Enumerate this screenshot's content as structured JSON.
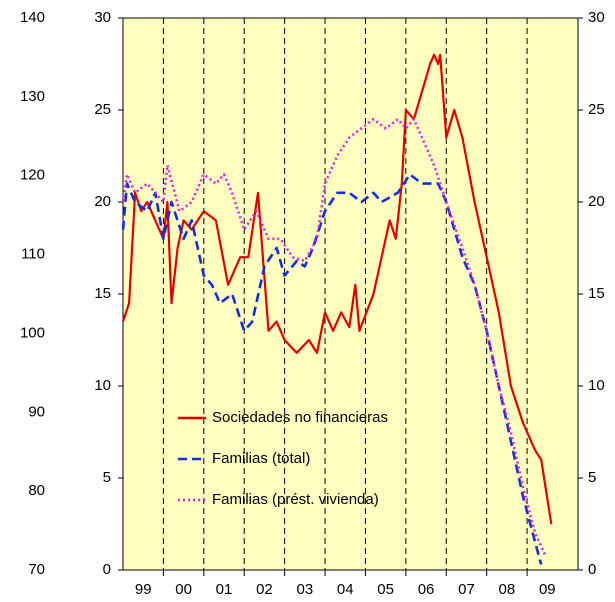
{
  "chart_data": {
    "type": "line",
    "xlim": [
      1999,
      2010.26
    ],
    "xticks": [
      {
        "value": 1999.5,
        "label": "99"
      },
      {
        "value": 2000.5,
        "label": "00"
      },
      {
        "value": 2001.5,
        "label": "01"
      },
      {
        "value": 2002.5,
        "label": "02"
      },
      {
        "value": 2003.5,
        "label": "03"
      },
      {
        "value": 2004.5,
        "label": "04"
      },
      {
        "value": 2005.5,
        "label": "05"
      },
      {
        "value": 2006.5,
        "label": "06"
      },
      {
        "value": 2007.5,
        "label": "07"
      },
      {
        "value": 2008.5,
        "label": "08"
      },
      {
        "value": 2009.5,
        "label": "09"
      }
    ],
    "year_lines": [
      2000,
      2001,
      2002,
      2003,
      2004,
      2005,
      2006,
      2007,
      2008,
      2009
    ],
    "ylim": [
      0,
      30
    ],
    "yticks": [
      0,
      5,
      10,
      15,
      20,
      25,
      30
    ],
    "y2lim": [
      0,
      30
    ],
    "y2ticks": [
      0,
      5,
      10,
      15,
      20,
      25,
      30
    ],
    "y3lim": [
      70,
      140
    ],
    "y3ticks": [
      70,
      80,
      90,
      100,
      110,
      120,
      130,
      140
    ],
    "background": "#ffffc0",
    "legend": "lower-left",
    "series": [
      {
        "name": "Sociedades no financieras",
        "color": "#e00000",
        "style": "solid",
        "x": [
          1999.0,
          1999.15,
          1999.3,
          1999.45,
          1999.6,
          1999.8,
          2000.0,
          2000.1,
          2000.2,
          2000.35,
          2000.5,
          2000.7,
          2001.0,
          2001.3,
          2001.6,
          2001.9,
          2002.1,
          2002.34,
          2002.6,
          2002.8,
          2003.0,
          2003.3,
          2003.6,
          2003.8,
          2004.0,
          2004.2,
          2004.4,
          2004.6,
          2004.75,
          2004.85,
          2005.2,
          2005.4,
          2005.6,
          2005.75,
          2005.9,
          2006.0,
          2006.2,
          2006.4,
          2006.6,
          2006.7,
          2006.8,
          2006.85,
          2007.0,
          2007.2,
          2007.4,
          2007.7,
          2008.0,
          2008.3,
          2008.6,
          2008.9,
          2009.2,
          2009.35,
          2009.6
        ],
        "values": [
          13.5,
          14.5,
          20.5,
          19.5,
          20,
          19,
          18,
          20,
          14.5,
          17.5,
          19,
          18.5,
          19.5,
          19,
          15.5,
          17,
          17,
          20.5,
          13,
          13.5,
          12.5,
          11.8,
          12.5,
          11.8,
          14,
          13,
          14,
          13.2,
          15.5,
          13,
          15,
          17,
          19,
          18,
          21,
          25,
          24.5,
          26,
          27.5,
          28,
          27.5,
          28,
          23.5,
          25,
          23.5,
          20,
          17,
          14,
          10,
          8,
          6.5,
          6,
          2.5
        ]
      },
      {
        "name": "Familias (total)",
        "color": "#1030e0",
        "style": "dashed",
        "x": [
          1999.0,
          1999.1,
          1999.3,
          1999.6,
          1999.8,
          2000.0,
          2000.2,
          2000.5,
          2000.7,
          2001.0,
          2001.2,
          2001.4,
          2001.7,
          2002.0,
          2002.2,
          2002.5,
          2002.8,
          2003.0,
          2003.3,
          2003.5,
          2003.7,
          2004.0,
          2004.3,
          2004.6,
          2004.9,
          2005.2,
          2005.4,
          2005.8,
          2006.1,
          2006.4,
          2006.8,
          2007.0,
          2007.4,
          2007.7,
          2008.0,
          2008.3,
          2008.6,
          2008.9,
          2009.2,
          2009.35
        ],
        "values": [
          18.5,
          21,
          20,
          19.5,
          20.5,
          18,
          20,
          18,
          19,
          16,
          15.5,
          14.5,
          15,
          13,
          13.5,
          16.5,
          17.5,
          16,
          16.8,
          16.5,
          17.5,
          19.5,
          20.5,
          20.5,
          20,
          20.5,
          20,
          20.5,
          21.5,
          21,
          21,
          20,
          17,
          15.5,
          13,
          10,
          7,
          4,
          1.5,
          0.3
        ]
      },
      {
        "name": "Familias (prést. vivienda)",
        "color": "#e020e0",
        "style": "dotted",
        "x": [
          1999.0,
          1999.1,
          1999.3,
          1999.6,
          1999.8,
          2000.0,
          2000.1,
          2000.4,
          2000.7,
          2001.0,
          2001.3,
          2001.5,
          2001.7,
          2002.0,
          2002.3,
          2002.6,
          2002.9,
          2003.2,
          2003.5,
          2003.8,
          2004.0,
          2004.3,
          2004.6,
          2004.9,
          2005.2,
          2005.5,
          2005.8,
          2006.0,
          2006.2,
          2006.5,
          2006.7,
          2007.0,
          2007.4,
          2007.7,
          2008.0,
          2008.3,
          2008.6,
          2008.9,
          2009.2,
          2009.45
        ],
        "values": [
          20,
          21.5,
          20.5,
          21,
          20.5,
          20,
          22,
          19.5,
          20,
          21.5,
          21,
          21.5,
          20.5,
          18.5,
          19.5,
          18,
          18,
          17,
          16.8,
          18,
          21,
          22.5,
          23.5,
          24,
          24.5,
          24,
          24.5,
          24,
          24.5,
          23,
          22,
          20,
          17.5,
          15.5,
          13,
          10,
          7.5,
          4.5,
          2,
          0.8
        ]
      }
    ]
  }
}
